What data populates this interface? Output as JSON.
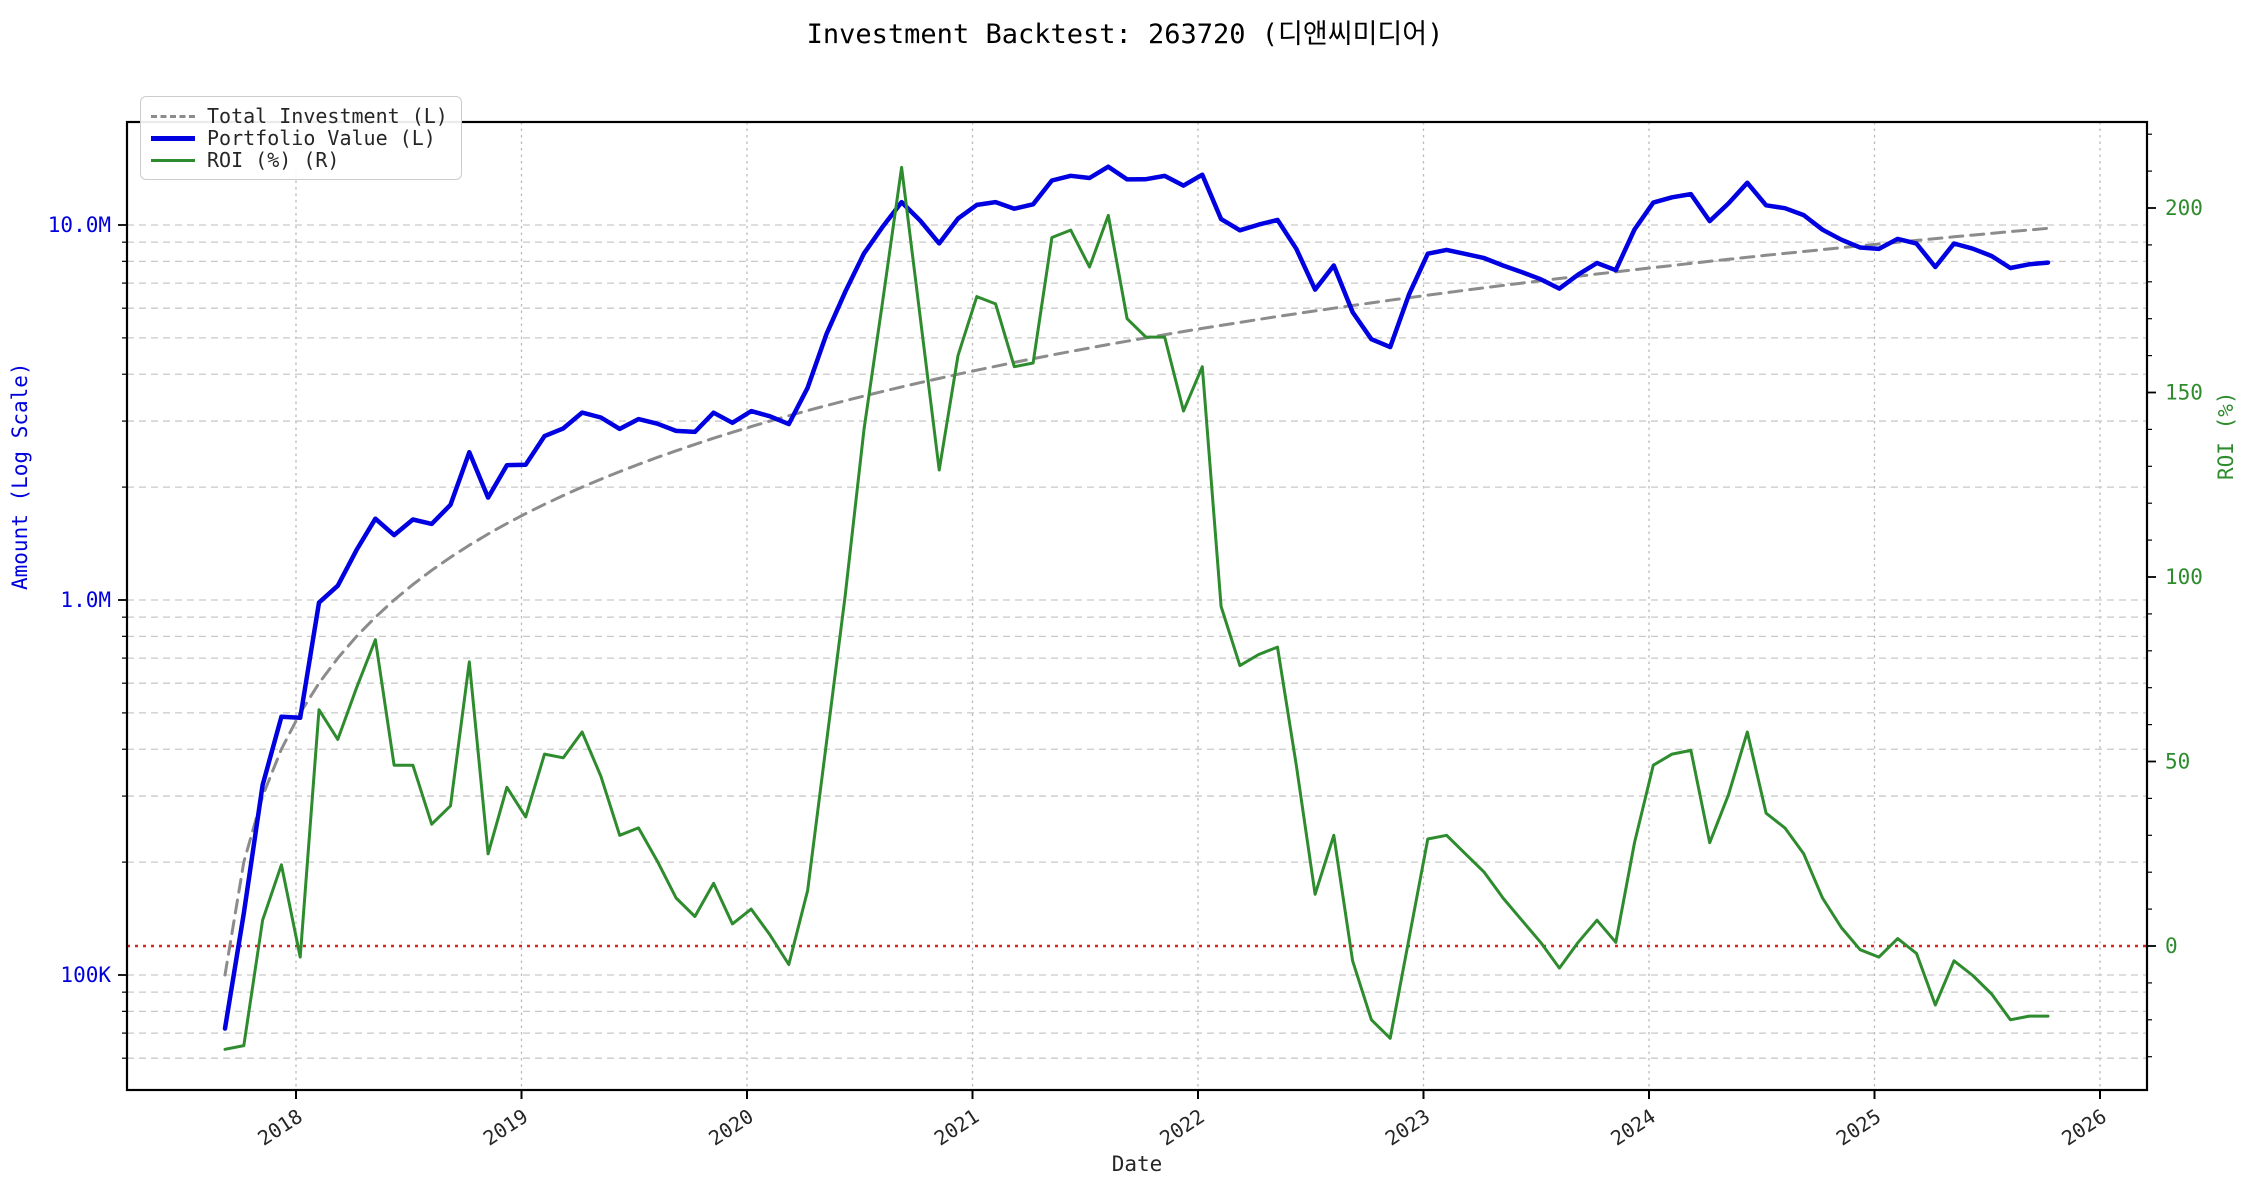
{
  "chart_data": {
    "type": "line",
    "title": "Investment Backtest: 263720 (디앤씨미디어)",
    "xlabel": "Date",
    "ylabel_left": "Amount (Log Scale)",
    "ylabel_right": "ROI (%)",
    "x_tick_labels": [
      "2018",
      "2019",
      "2020",
      "2021",
      "2022",
      "2023",
      "2024",
      "2025",
      "2026"
    ],
    "left_axis": {
      "scale": "log",
      "tick_labels": [
        "10.0M",
        "1.0M",
        "100K"
      ],
      "tick_values_millions": [
        10,
        1,
        0.1
      ],
      "color": "#0000dd",
      "ylim_millions": [
        0.052,
        24
      ]
    },
    "right_axis": {
      "tick_labels": [
        "200",
        "150",
        "100",
        "50",
        "0"
      ],
      "tick_values": [
        200,
        150,
        100,
        50,
        0
      ],
      "color": "#2e8b2e",
      "ylim": [
        -39,
        223
      ]
    },
    "grid": true,
    "legend_position": "upper left",
    "legend_entries": [
      {
        "label": "Total Investment (L)",
        "color": "#8c8c8c",
        "style": "dashed"
      },
      {
        "label": "Portfolio Value (L)",
        "color": "#0000e0",
        "style": "solid"
      },
      {
        "label": "ROI (%) (R)",
        "color": "#2e8b2e",
        "style": "solid"
      }
    ],
    "zero_line": {
      "axis": "right",
      "value": 0,
      "color": "#dd2222",
      "style": "dotted"
    },
    "months": [
      "2017-09",
      "2017-10",
      "2017-11",
      "2017-12",
      "2018-01",
      "2018-02",
      "2018-03",
      "2018-04",
      "2018-05",
      "2018-06",
      "2018-07",
      "2018-08",
      "2018-09",
      "2018-10",
      "2018-11",
      "2018-12",
      "2019-01",
      "2019-02",
      "2019-03",
      "2019-04",
      "2019-05",
      "2019-06",
      "2019-07",
      "2019-08",
      "2019-09",
      "2019-10",
      "2019-11",
      "2019-12",
      "2020-01",
      "2020-02",
      "2020-03",
      "2020-04",
      "2020-05",
      "2020-06",
      "2020-07",
      "2020-08",
      "2020-09",
      "2020-10",
      "2020-11",
      "2020-12",
      "2021-01",
      "2021-02",
      "2021-03",
      "2021-04",
      "2021-05",
      "2021-06",
      "2021-07",
      "2021-08",
      "2021-09",
      "2021-10",
      "2021-11",
      "2021-12",
      "2022-01",
      "2022-02",
      "2022-03",
      "2022-04",
      "2022-05",
      "2022-06",
      "2022-07",
      "2022-08",
      "2022-09",
      "2022-10",
      "2022-11",
      "2022-12",
      "2023-01",
      "2023-02",
      "2023-03",
      "2023-04",
      "2023-05",
      "2023-06",
      "2023-07",
      "2023-08",
      "2023-09",
      "2023-10",
      "2023-11",
      "2023-12",
      "2024-01",
      "2024-02",
      "2024-03",
      "2024-04",
      "2024-05",
      "2024-06",
      "2024-07",
      "2024-08",
      "2024-09",
      "2024-10",
      "2024-11",
      "2024-12",
      "2025-01",
      "2025-02",
      "2025-03",
      "2025-04",
      "2025-05",
      "2025-06",
      "2025-07",
      "2025-08",
      "2025-09",
      "2025-10"
    ],
    "series": [
      {
        "name": "Total Investment (L)",
        "axis": "left",
        "units": "millions",
        "color": "#8c8c8c",
        "style": "dashed",
        "width": 3,
        "values": [
          0.1,
          0.2,
          0.3,
          0.4,
          0.5,
          0.6,
          0.7,
          0.8,
          0.9,
          1.0,
          1.1,
          1.2,
          1.3,
          1.4,
          1.5,
          1.6,
          1.7,
          1.8,
          1.9,
          2.0,
          2.1,
          2.2,
          2.3,
          2.4,
          2.5,
          2.6,
          2.7,
          2.8,
          2.9,
          3.0,
          3.1,
          3.2,
          3.3,
          3.4,
          3.5,
          3.6,
          3.7,
          3.8,
          3.9,
          4.0,
          4.1,
          4.2,
          4.3,
          4.4,
          4.5,
          4.6,
          4.7,
          4.8,
          4.9,
          5.0,
          5.1,
          5.2,
          5.3,
          5.4,
          5.5,
          5.6,
          5.7,
          5.8,
          5.9,
          6.0,
          6.1,
          6.2,
          6.3,
          6.4,
          6.5,
          6.6,
          6.7,
          6.8,
          6.9,
          7.0,
          7.1,
          7.2,
          7.3,
          7.4,
          7.5,
          7.6,
          7.7,
          7.8,
          7.9,
          8.0,
          8.1,
          8.2,
          8.3,
          8.4,
          8.5,
          8.6,
          8.7,
          8.8,
          8.9,
          9.0,
          9.1,
          9.2,
          9.3,
          9.4,
          9.5,
          9.6,
          9.7,
          9.8
        ]
      },
      {
        "name": "Portfolio Value (L)",
        "axis": "left",
        "units": "millions",
        "color": "#0000e0",
        "style": "solid",
        "width": 4.5,
        "values": [
          0.072,
          0.146,
          0.321,
          0.488,
          0.485,
          0.984,
          1.092,
          1.36,
          1.647,
          1.49,
          1.639,
          1.596,
          1.794,
          2.478,
          1.875,
          2.288,
          2.295,
          2.736,
          2.869,
          3.16,
          3.066,
          2.86,
          3.036,
          2.952,
          2.825,
          2.808,
          3.159,
          2.968,
          3.19,
          3.09,
          2.945,
          3.68,
          5.115,
          6.63,
          8.4,
          9.9,
          11.507,
          10.26,
          8.931,
          10.4,
          11.316,
          11.508,
          11.051,
          11.352,
          13.14,
          13.524,
          13.348,
          14.304,
          13.23,
          13.25,
          13.515,
          12.74,
          13.621,
          10.368,
          9.68,
          10.024,
          10.317,
          8.642,
          6.726,
          7.8,
          5.856,
          4.96,
          4.725,
          6.528,
          8.385,
          8.58,
          8.375,
          8.16,
          7.797,
          7.49,
          7.171,
          6.768,
          7.373,
          7.918,
          7.575,
          9.728,
          11.473,
          11.856,
          12.087,
          10.24,
          11.421,
          12.956,
          11.288,
          11.088,
          10.625,
          9.718,
          9.135,
          8.712,
          8.633,
          9.18,
          8.918,
          7.728,
          8.928,
          8.648,
          8.265,
          7.68,
          7.857,
          7.938
        ]
      },
      {
        "name": "ROI (%) (R)",
        "axis": "right",
        "units": "percent",
        "color": "#2e8b2e",
        "style": "solid",
        "width": 3,
        "values": [
          -28,
          -27,
          7,
          22,
          -3,
          64,
          56,
          70,
          83,
          49,
          49,
          33,
          38,
          77,
          25,
          43,
          35,
          52,
          51,
          58,
          46,
          30,
          32,
          23,
          13,
          8,
          17,
          6,
          10,
          3,
          -5,
          15,
          55,
          95,
          140,
          175,
          211,
          170,
          129,
          160,
          176,
          174,
          157,
          158,
          192,
          194,
          184,
          198,
          170,
          165,
          165,
          145,
          157,
          92,
          76,
          79,
          81,
          49,
          14,
          30,
          -4,
          -20,
          -25,
          2,
          29,
          30,
          25,
          20,
          13,
          7,
          1,
          -6,
          1,
          7,
          1,
          28,
          49,
          52,
          53,
          28,
          41,
          58,
          36,
          32,
          25,
          13,
          5,
          -1,
          -3,
          2,
          -2,
          -16,
          -4,
          -8,
          -13,
          -20,
          -19,
          -19
        ]
      }
    ]
  }
}
